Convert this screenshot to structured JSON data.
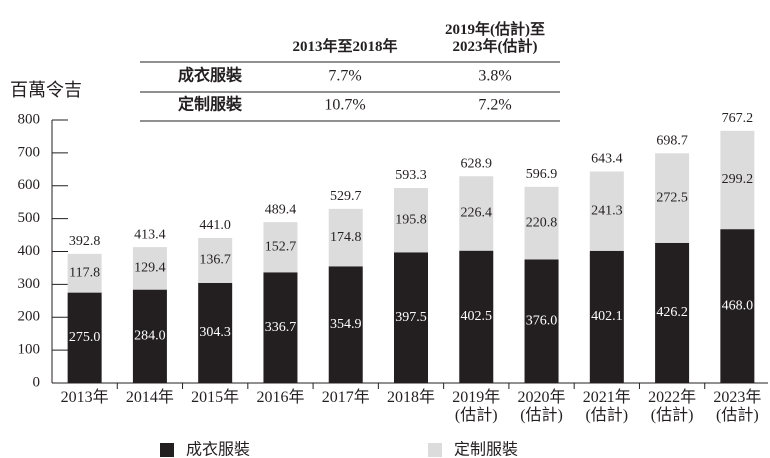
{
  "chart_data": {
    "type": "stacked_bar",
    "y_label": "百萬令吉",
    "categories": [
      "2013年",
      "2014年",
      "2015年",
      "2016年",
      "2017年",
      "2018年",
      "2019年\n(估計)",
      "2020年\n(估計)",
      "2021年\n(估計)",
      "2022年\n(估計)",
      "2023年\n(估計)"
    ],
    "series": [
      {
        "name": "成衣服裝",
        "color": "#231f20",
        "label_color": "#ffffff",
        "values": [
          275.0,
          284.0,
          304.3,
          336.7,
          354.9,
          397.5,
          402.5,
          376.0,
          402.1,
          426.2,
          468.0
        ],
        "value_labels": [
          "275.0",
          "284.0",
          "304.3",
          "336.7",
          "354.9",
          "397.5",
          "402.5",
          "376.0",
          "402.1",
          "426.2",
          "468.0"
        ]
      },
      {
        "name": "定制服裝",
        "color": "#dcdcdd",
        "label_color": "#231f20",
        "values": [
          117.8,
          129.4,
          136.7,
          152.7,
          174.8,
          195.8,
          226.4,
          220.8,
          241.3,
          272.5,
          299.2
        ],
        "value_labels": [
          "117.8",
          "129.4",
          "136.7",
          "152.7",
          "174.8",
          "195.8",
          "226.4",
          "220.8",
          "241.3",
          "272.5",
          "299.2"
        ]
      }
    ],
    "total_labels": [
      "392.8",
      "413.4",
      "441.0",
      "489.4",
      "529.7",
      "593.3",
      "628.9",
      "596.9",
      "643.4",
      "698.7",
      "767.2"
    ],
    "ylim": [
      0,
      800
    ],
    "yticks": [
      0,
      100,
      200,
      300,
      400,
      500,
      600,
      700,
      800
    ],
    "table": {
      "columns": [
        "2013年至2018年",
        "2019年(估計)至\n2023年(估計)"
      ],
      "rows": [
        [
          "成衣服裝",
          "7.7%",
          "3.8%"
        ],
        [
          "定制服裝",
          "10.7%",
          "7.2%"
        ]
      ]
    }
  }
}
